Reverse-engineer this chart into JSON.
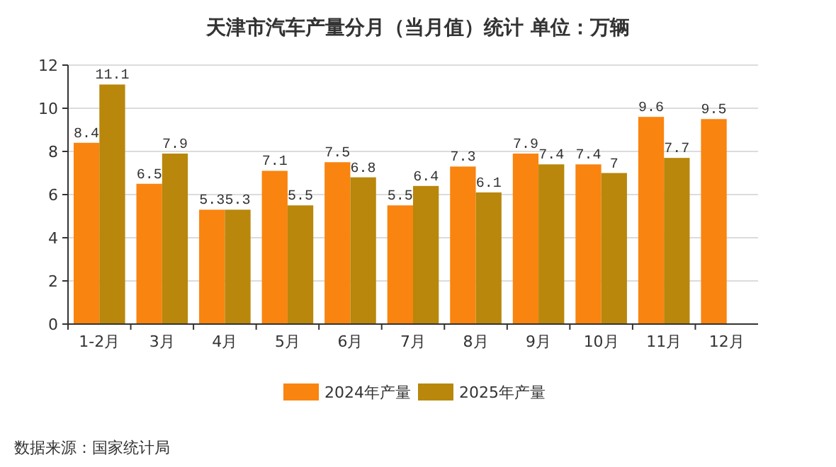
{
  "chart_data": {
    "type": "bar",
    "title": "天津市汽车产量分月（当月值）统计  单位：万辆",
    "categories": [
      "1-2月",
      "3月",
      "4月",
      "5月",
      "6月",
      "7月",
      "8月",
      "9月",
      "10月",
      "11月",
      "12月"
    ],
    "series": [
      {
        "name": "2024年产量",
        "color": "#f98410",
        "values": [
          8.4,
          6.5,
          5.3,
          7.1,
          7.5,
          5.5,
          7.3,
          7.9,
          7.4,
          9.6,
          9.5
        ]
      },
      {
        "name": "2025年产量",
        "color": "#b8870c",
        "values": [
          11.1,
          7.9,
          5.3,
          5.5,
          6.8,
          6.4,
          6.1,
          7.4,
          7,
          7.7,
          null
        ]
      }
    ],
    "ylim": [
      0,
      12
    ],
    "yticks": [
      0,
      2,
      4,
      6,
      8,
      10,
      12
    ],
    "grid": "y",
    "legend": "bottom",
    "data_labels": true,
    "annotations": [
      "数据来源：国家统计局"
    ]
  }
}
